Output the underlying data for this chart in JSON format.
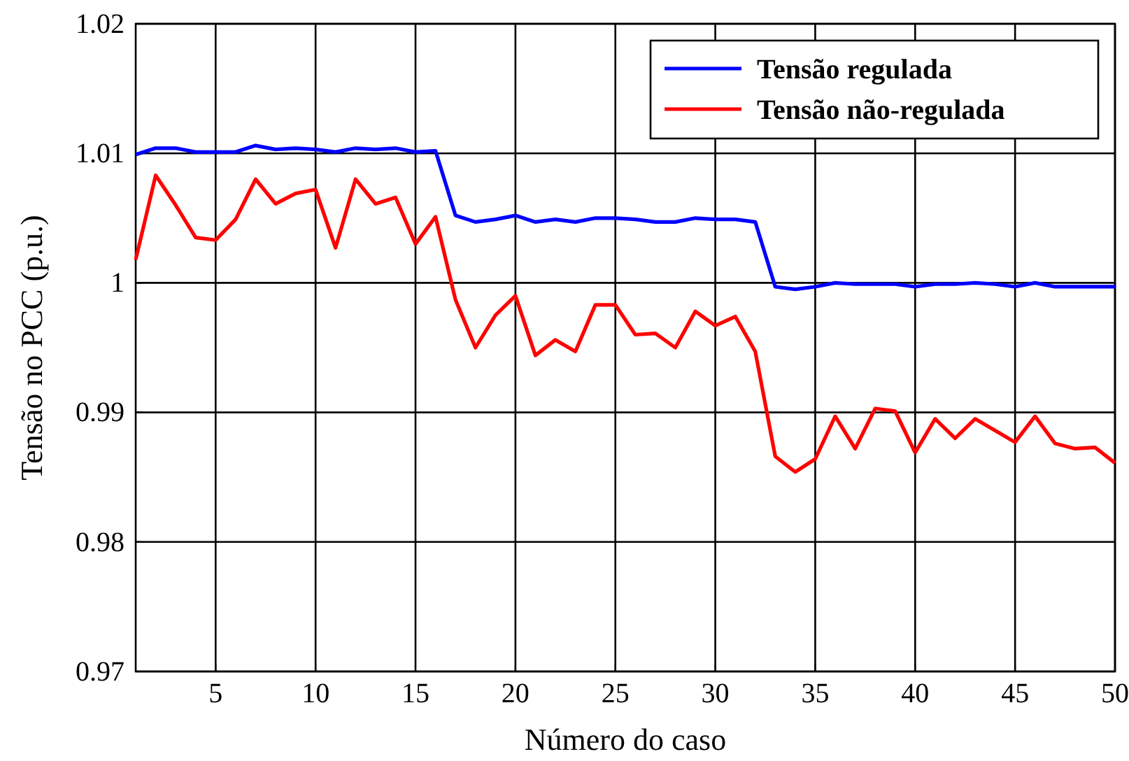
{
  "chart_data": {
    "type": "line",
    "xlabel": "Número do caso",
    "ylabel": "Tensão no PCC (p.u.)",
    "x": [
      1,
      2,
      3,
      4,
      5,
      6,
      7,
      8,
      9,
      10,
      11,
      12,
      13,
      14,
      15,
      16,
      17,
      18,
      19,
      20,
      21,
      22,
      23,
      24,
      25,
      26,
      27,
      28,
      29,
      30,
      31,
      32,
      33,
      34,
      35,
      36,
      37,
      38,
      39,
      40,
      41,
      42,
      43,
      44,
      45,
      46,
      47,
      48,
      49,
      50
    ],
    "series": [
      {
        "name": "Tensão regulada",
        "color": "#0000ff",
        "values": [
          1.0099,
          1.0104,
          1.0104,
          1.0101,
          1.0101,
          1.0101,
          1.0106,
          1.0103,
          1.0104,
          1.0103,
          1.0101,
          1.0104,
          1.0103,
          1.0104,
          1.0101,
          1.0102,
          1.0052,
          1.0047,
          1.0049,
          1.0052,
          1.0047,
          1.0049,
          1.0047,
          1.005,
          1.005,
          1.0049,
          1.0047,
          1.0047,
          1.005,
          1.0049,
          1.0049,
          1.0047,
          0.9997,
          0.9995,
          0.9997,
          1.0,
          0.9999,
          0.9999,
          0.9999,
          0.9997,
          0.9999,
          0.9999,
          1.0,
          0.9999,
          0.9997,
          1.0,
          0.9997,
          0.9997,
          0.9997,
          0.9997
        ]
      },
      {
        "name": "Tensão não-regulada",
        "color": "#ff0000",
        "values": [
          1.0018,
          1.0083,
          1.006,
          1.0035,
          1.0033,
          1.0049,
          1.008,
          1.0061,
          1.0069,
          1.0072,
          1.0027,
          1.008,
          1.0061,
          1.0066,
          1.003,
          1.0051,
          0.9987,
          0.995,
          0.9975,
          0.999,
          0.9944,
          0.9956,
          0.9947,
          0.9983,
          0.9983,
          0.996,
          0.9961,
          0.995,
          0.9978,
          0.9967,
          0.9974,
          0.9947,
          0.9866,
          0.9854,
          0.9864,
          0.9897,
          0.9872,
          0.9903,
          0.9901,
          0.9869,
          0.9895,
          0.988,
          0.9895,
          0.9886,
          0.9877,
          0.9897,
          0.9876,
          0.9872,
          0.9873,
          0.9861
        ]
      }
    ],
    "xlim": [
      1,
      50
    ],
    "xticks": [
      5,
      10,
      15,
      20,
      25,
      30,
      35,
      40,
      45,
      50
    ],
    "ylim": [
      0.97,
      1.02
    ],
    "yticks": [
      0.97,
      0.98,
      0.99,
      1,
      1.01,
      1.02
    ],
    "grid": true,
    "legend": "top right",
    "line_style": "solid",
    "marker": "none"
  }
}
